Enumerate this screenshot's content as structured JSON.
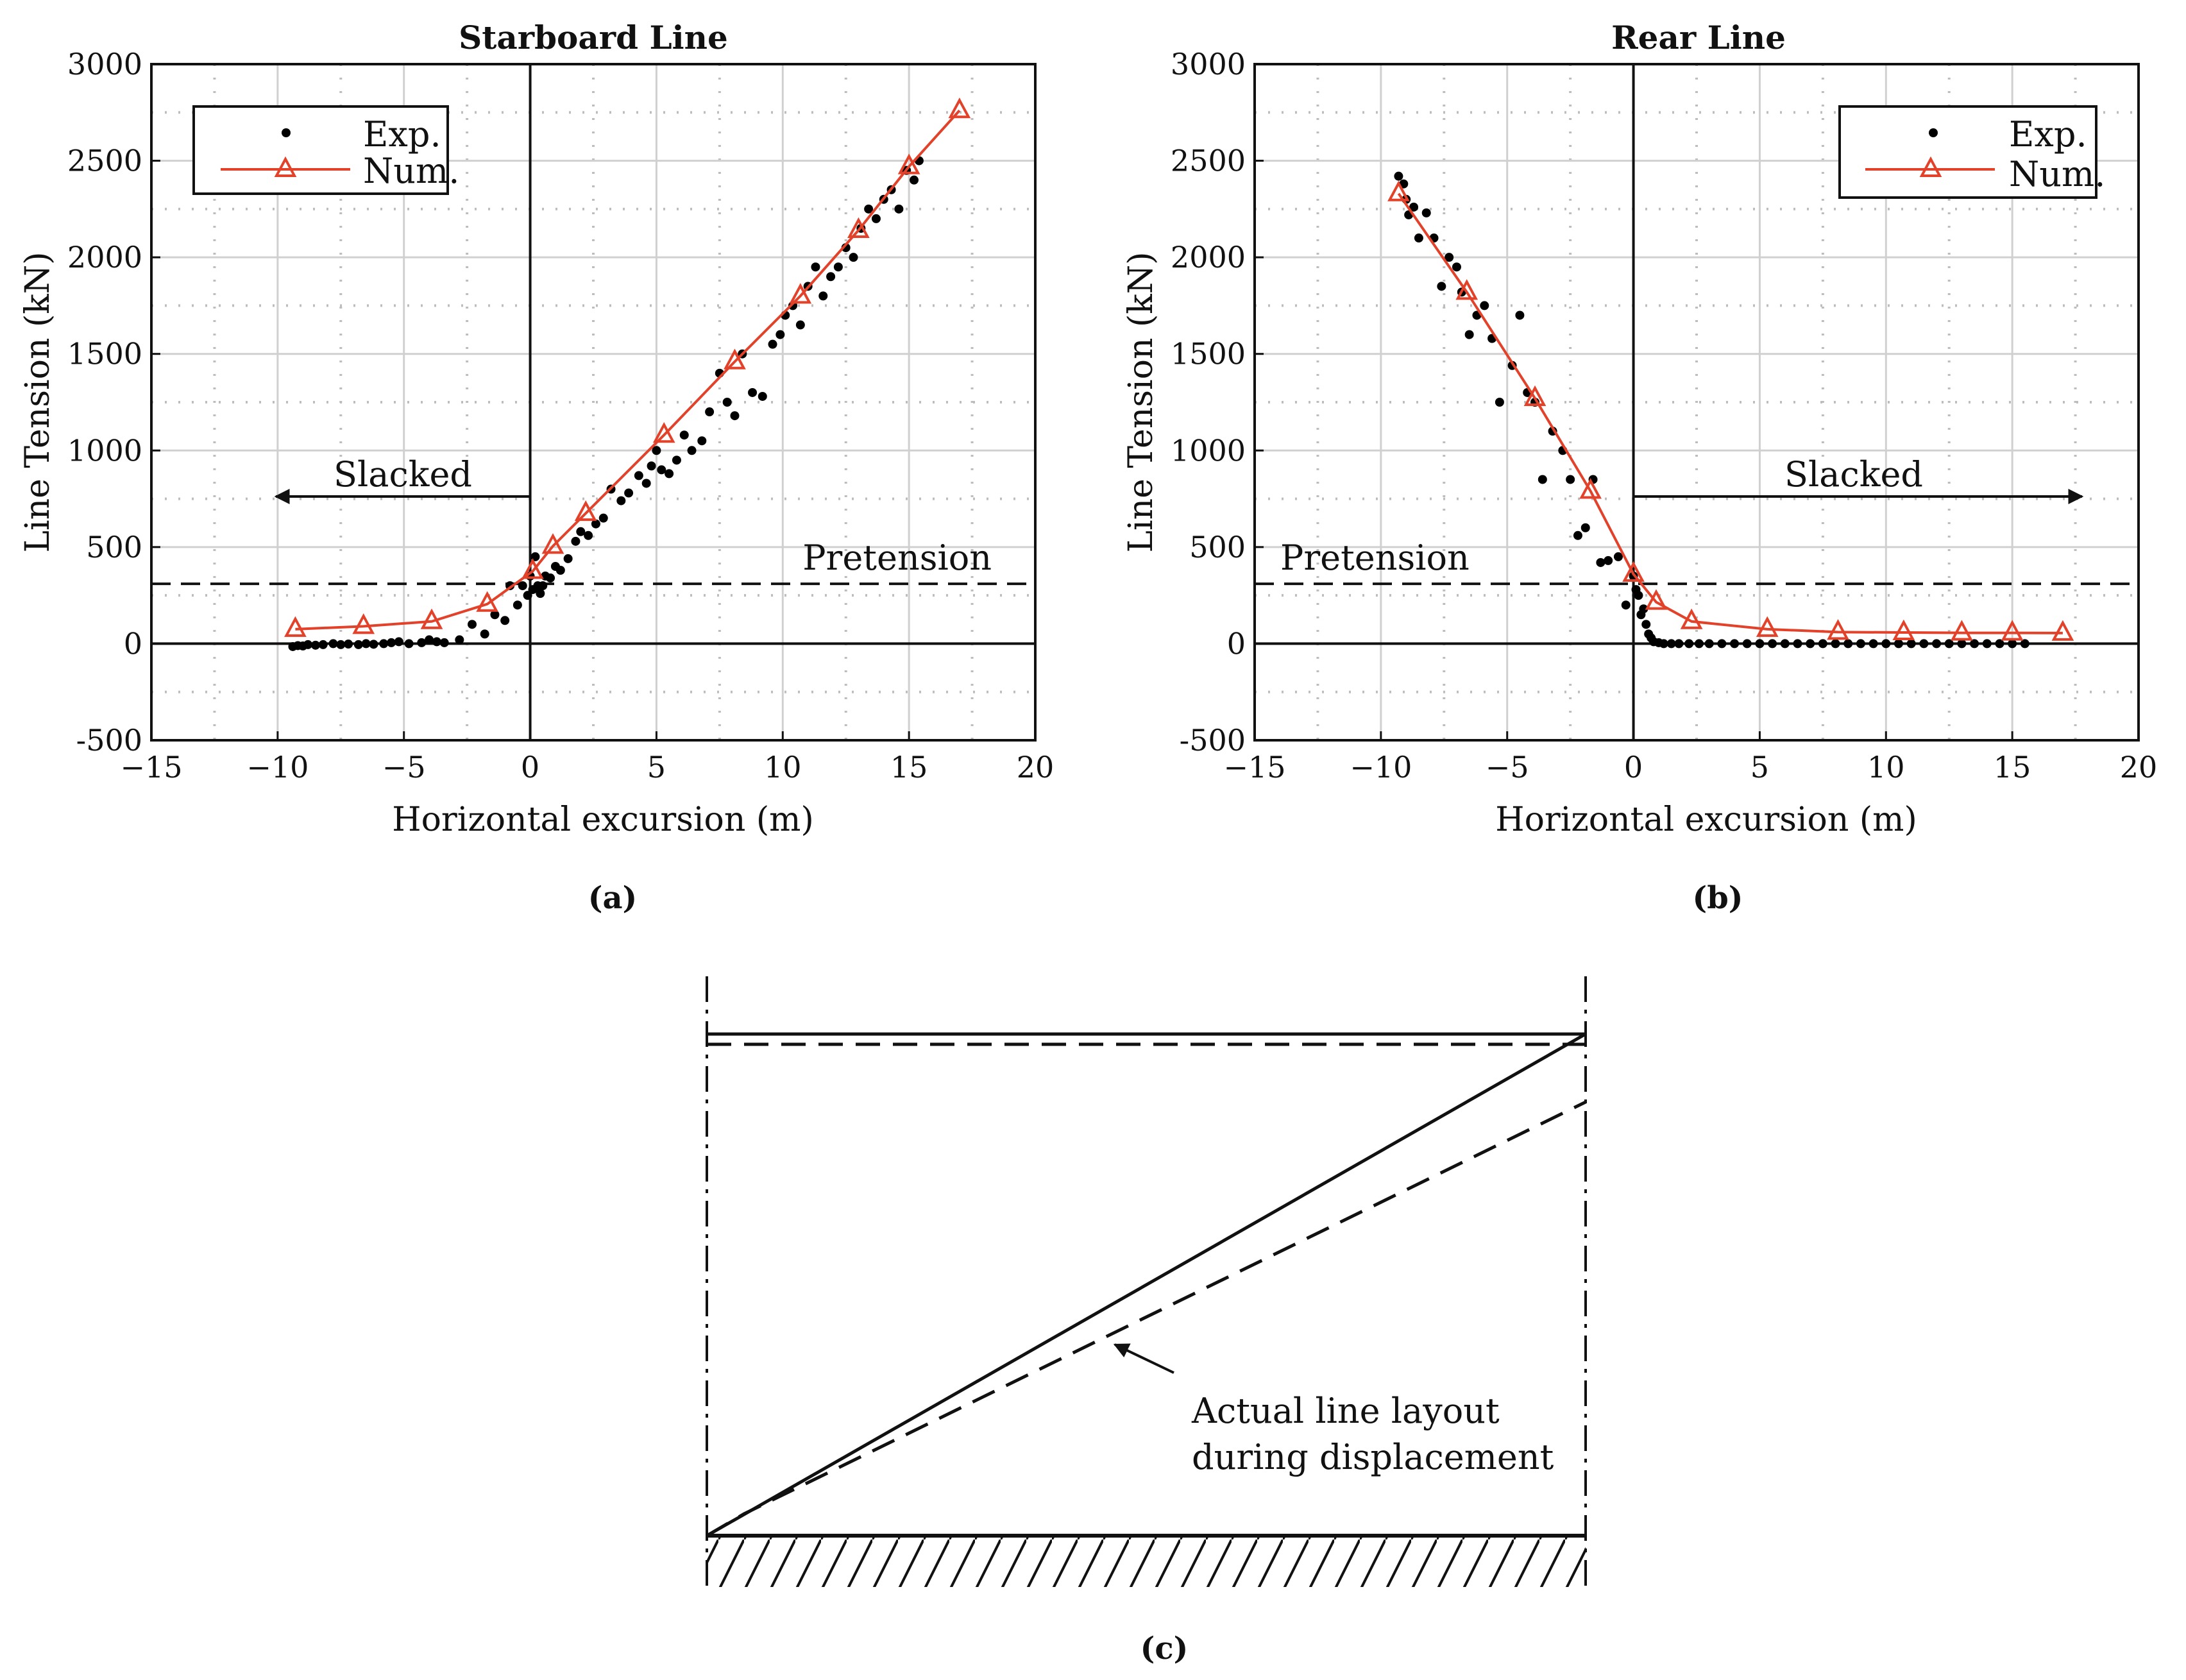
{
  "chart_data": [
    {
      "type": "scatter",
      "panel": "a",
      "caption": "(a)",
      "title": "Starboard Line",
      "xlabel": "Horizontal excursion (m)",
      "ylabel": "Line Tension (kN)",
      "xlim": [
        -15,
        20
      ],
      "ylim": [
        -500,
        3000
      ],
      "xticks": [
        "-15",
        "-10",
        "-5",
        "0",
        "5",
        "10",
        "15",
        "20"
      ],
      "yticks": [
        "-500",
        "0",
        "500",
        "1000",
        "1500",
        "2000",
        "2500",
        "3000"
      ],
      "legend": {
        "position": "top-left",
        "entries": [
          "Exp.",
          "Num."
        ]
      },
      "annotations": {
        "slacked": "Slacked",
        "pretension": "Pretension"
      },
      "pretension_value": 310,
      "series": [
        {
          "name": "Exp.",
          "style": "markers",
          "color": "#000000",
          "x": [
            -9.4,
            -9.2,
            -9.0,
            -8.8,
            -8.5,
            -8.2,
            -7.8,
            -7.5,
            -7.2,
            -6.8,
            -6.5,
            -6.2,
            -5.8,
            -5.5,
            -5.2,
            -4.8,
            -4.3,
            -4.0,
            -3.7,
            -3.4,
            -2.8,
            -2.3,
            -1.8,
            -1.4,
            -1.0,
            -0.8,
            -0.5,
            -0.3,
            -0.1,
            0.0,
            0.1,
            0.2,
            0.3,
            0.4,
            0.5,
            0.6,
            0.8,
            1.0,
            1.2,
            1.5,
            1.8,
            2.0,
            2.3,
            2.6,
            2.9,
            3.2,
            3.6,
            3.9,
            4.3,
            4.6,
            4.8,
            5.0,
            5.2,
            5.5,
            5.8,
            6.1,
            6.4,
            6.8,
            7.1,
            7.5,
            7.8,
            8.1,
            8.4,
            8.8,
            9.2,
            9.6,
            9.9,
            10.1,
            10.4,
            10.7,
            11.0,
            11.3,
            11.6,
            11.9,
            12.2,
            12.5,
            12.8,
            13.1,
            13.4,
            13.7,
            14.0,
            14.3,
            14.6,
            14.9,
            15.2,
            15.4
          ],
          "y": [
            -15,
            -10,
            -12,
            -5,
            -8,
            -5,
            0,
            -5,
            -2,
            -5,
            0,
            -3,
            0,
            5,
            10,
            0,
            5,
            20,
            10,
            5,
            20,
            100,
            50,
            150,
            120,
            300,
            200,
            300,
            250,
            350,
            280,
            450,
            300,
            260,
            300,
            350,
            340,
            400,
            380,
            440,
            530,
            580,
            560,
            620,
            650,
            800,
            740,
            780,
            870,
            830,
            920,
            1000,
            900,
            880,
            950,
            1080,
            1000,
            1050,
            1200,
            1400,
            1250,
            1180,
            1500,
            1300,
            1280,
            1550,
            1600,
            1700,
            1750,
            1650,
            1850,
            1950,
            1800,
            1900,
            1950,
            2050,
            2000,
            2150,
            2250,
            2200,
            2300,
            2350,
            2250,
            2450,
            2400,
            2500
          ]
        },
        {
          "name": "Num.",
          "style": "line+triangle",
          "color": "#E2412A",
          "x": [
            -9.3,
            -6.6,
            -3.9,
            -1.7,
            0.1,
            0.9,
            2.2,
            5.3,
            8.1,
            10.7,
            13.0,
            15.0,
            17.0
          ],
          "y": [
            75,
            90,
            115,
            205,
            375,
            505,
            675,
            1080,
            1460,
            1800,
            2140,
            2470,
            2760
          ]
        }
      ]
    },
    {
      "type": "scatter",
      "panel": "b",
      "caption": "(b)",
      "title": "Rear Line",
      "xlabel": "Horizontal excursion (m)",
      "ylabel": "Line Tension (kN)",
      "xlim": [
        -15,
        20
      ],
      "ylim": [
        -500,
        3000
      ],
      "xticks": [
        "-15",
        "-10",
        "-5",
        "0",
        "5",
        "10",
        "15",
        "20"
      ],
      "yticks": [
        "-500",
        "0",
        "500",
        "1000",
        "1500",
        "2000",
        "2500",
        "3000"
      ],
      "legend": {
        "position": "top-right",
        "entries": [
          "Exp.",
          "Num."
        ]
      },
      "annotations": {
        "slacked": "Slacked",
        "pretension": "Pretension"
      },
      "pretension_value": 310,
      "series": [
        {
          "name": "Exp.",
          "style": "markers",
          "color": "#000000",
          "x": [
            -9.3,
            -9.1,
            -9.0,
            -8.9,
            -8.7,
            -8.5,
            -8.2,
            -7.9,
            -7.6,
            -7.3,
            -7.0,
            -6.8,
            -6.5,
            -6.2,
            -5.9,
            -5.6,
            -5.3,
            -4.8,
            -4.5,
            -4.2,
            -3.9,
            -3.6,
            -3.2,
            -2.8,
            -2.5,
            -2.2,
            -1.9,
            -1.6,
            -1.3,
            -1.0,
            -0.6,
            -0.3,
            0.0,
            0.1,
            0.2,
            0.3,
            0.4,
            0.5,
            0.6,
            0.7,
            0.8,
            1.0,
            1.2,
            1.5,
            1.8,
            2.2,
            2.6,
            3.0,
            3.5,
            4.0,
            4.5,
            5.0,
            5.5,
            6.0,
            6.5,
            7.0,
            7.5,
            8.0,
            8.5,
            9.0,
            9.5,
            10.0,
            10.5,
            11.0,
            11.5,
            12.0,
            12.5,
            13.0,
            13.5,
            14.0,
            14.5,
            15.0,
            15.5
          ],
          "y": [
            2420,
            2380,
            2300,
            2220,
            2260,
            2100,
            2230,
            2100,
            1850,
            2000,
            1950,
            1820,
            1600,
            1700,
            1750,
            1580,
            1250,
            1440,
            1700,
            1300,
            1250,
            850,
            1100,
            1000,
            850,
            560,
            600,
            850,
            420,
            430,
            450,
            200,
            350,
            280,
            250,
            150,
            180,
            100,
            50,
            30,
            10,
            5,
            0,
            0,
            0,
            0,
            0,
            0,
            0,
            0,
            0,
            0,
            0,
            0,
            0,
            0,
            0,
            0,
            0,
            0,
            0,
            0,
            0,
            0,
            0,
            0,
            0,
            0,
            0,
            0,
            0,
            0,
            0
          ]
        },
        {
          "name": "Num.",
          "style": "line+triangle",
          "color": "#E2412A",
          "x": [
            -9.3,
            -6.6,
            -3.9,
            -1.7,
            0.0,
            0.9,
            2.3,
            5.3,
            8.1,
            10.7,
            13.0,
            15.0,
            17.0
          ],
          "y": [
            2330,
            1820,
            1270,
            790,
            360,
            215,
            115,
            75,
            60,
            58,
            56,
            56,
            55
          ]
        }
      ]
    }
  ],
  "diagram": {
    "caption": "(c)",
    "annotation_line1": "Actual line layout",
    "annotation_line2": "during displacement"
  }
}
